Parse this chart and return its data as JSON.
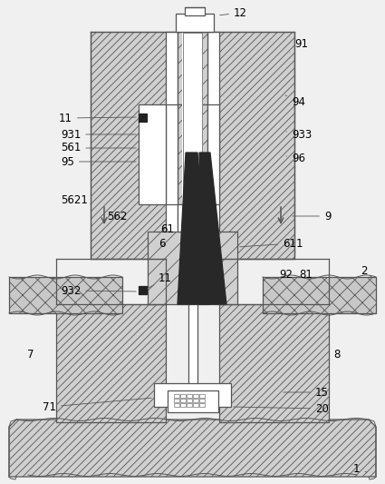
{
  "bg": "#f0f0f0",
  "lc": "#555555",
  "dark": "#222222",
  "gray_hatch": "#d0d0d0",
  "white": "#ffffff",
  "lw": 0.9,
  "fs": 8.5
}
